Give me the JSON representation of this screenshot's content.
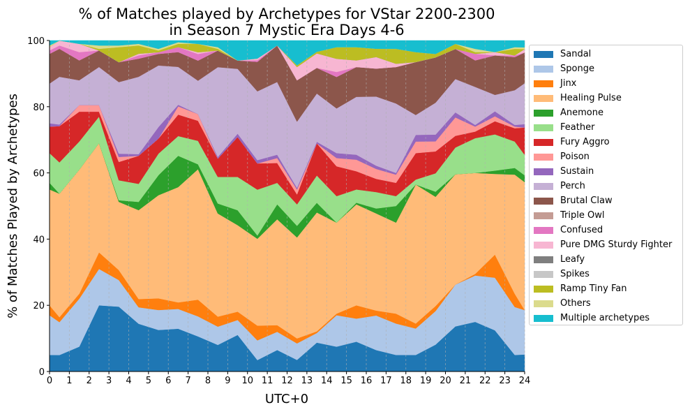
{
  "chart_data": {
    "type": "area",
    "stacked": true,
    "normalized_to": 100,
    "title": "% of Matches played by Archetypes for VStar 2200-2300\nin Season 7 Mystic Era Days 4-6",
    "xlabel": "UTC+0",
    "ylabel": "% of Matches Played by Archetypes",
    "xlim": [
      0,
      24
    ],
    "ylim": [
      0,
      100
    ],
    "x_ticks": [
      0,
      1,
      2,
      3,
      4,
      5,
      6,
      7,
      8,
      9,
      10,
      11,
      12,
      13,
      14,
      15,
      16,
      17,
      18,
      19,
      20,
      21,
      22,
      23,
      24
    ],
    "y_ticks": [
      0,
      20,
      40,
      60,
      80,
      100
    ],
    "grid": "vertical dashed",
    "legend_position": "outside-right",
    "x": [
      0,
      0.5,
      1.5,
      2.5,
      3.5,
      4.5,
      5.5,
      6.5,
      7.5,
      8.5,
      9.5,
      10.5,
      11.5,
      12.5,
      13.5,
      14.5,
      15.5,
      16.5,
      17.5,
      18.5,
      19.5,
      20.5,
      21.5,
      22.5,
      23.5,
      24
    ],
    "series": [
      {
        "name": "Sandal",
        "color": "#1f77b4",
        "values": [
          5,
          5,
          7.5,
          20,
          19.5,
          14.5,
          12.5,
          13,
          10.5,
          8,
          11,
          3.5,
          6.5,
          3.5,
          9,
          7.5,
          9,
          6.5,
          5,
          5,
          8,
          13.5,
          15,
          12.5,
          5,
          5
        ]
      },
      {
        "name": "Sponge",
        "color": "#aec7e8",
        "values": [
          12,
          10,
          14.5,
          11,
          8,
          5,
          6,
          6,
          6,
          5.5,
          4.5,
          6,
          5.5,
          5,
          3,
          9.5,
          7,
          10.5,
          9.5,
          8,
          10,
          12.5,
          14,
          16,
          14.5,
          13
        ]
      },
      {
        "name": "Jinx",
        "color": "#ff7f0e",
        "values": [
          3,
          1.5,
          1.5,
          5,
          3,
          2.5,
          3.5,
          2,
          5,
          3,
          2.5,
          4.5,
          2,
          1.5,
          0.5,
          0.5,
          4,
          1.5,
          3,
          1.5,
          1.5,
          0,
          0.5,
          7,
          4,
          0
        ]
      },
      {
        "name": "Healing Pulse",
        "color": "#ffbb78",
        "values": [
          35,
          37.5,
          37.5,
          33,
          20.5,
          27,
          31,
          35,
          39,
          31,
          26,
          26.5,
          32,
          30.5,
          37,
          27.5,
          30.5,
          29.5,
          27.5,
          42,
          32.5,
          33,
          30.5,
          24.5,
          36,
          37.5
        ]
      },
      {
        "name": "Anemone",
        "color": "#2ca02c",
        "values": [
          2,
          0,
          0,
          0,
          0.5,
          2.5,
          6,
          9.5,
          1.5,
          3,
          4.5,
          1,
          4.5,
          3.5,
          3,
          0,
          0.5,
          1.5,
          5,
          0,
          1.5,
          0,
          0,
          1,
          2,
          2
        ]
      },
      {
        "name": "Feather",
        "color": "#98df8a",
        "values": [
          9,
          9.5,
          8.5,
          8,
          6,
          5.5,
          6.5,
          6,
          7,
          8,
          10,
          14,
          6.5,
          6.5,
          8.5,
          8,
          4,
          5,
          3,
          1.5,
          5.5,
          8,
          10.5,
          11,
          8,
          6
        ]
      },
      {
        "name": "Fury Aggro",
        "color": "#d62728",
        "values": [
          8,
          11,
          9,
          1.5,
          5.5,
          8.5,
          4.5,
          6.5,
          6,
          5.5,
          12,
          8,
          6,
          3,
          10,
          9,
          5.5,
          4,
          4,
          8,
          6.5,
          3.5,
          2,
          4,
          4,
          8
        ]
      },
      {
        "name": "Poison",
        "color": "#ff9896",
        "values": [
          0,
          0,
          2,
          2,
          1.5,
          0,
          0,
          2.5,
          2,
          0,
          0,
          0,
          1.5,
          1.5,
          0,
          2.5,
          3.5,
          3,
          2.5,
          3.5,
          3,
          5.5,
          1.5,
          1.5,
          0.5,
          0
        ]
      },
      {
        "name": "Sustain",
        "color": "#9467bd",
        "values": [
          1,
          0.5,
          0,
          0,
          1,
          0.5,
          3.5,
          0.5,
          0,
          0.5,
          1,
          1,
          1,
          0.5,
          0.5,
          1.5,
          1.5,
          1,
          0.5,
          2,
          2,
          1.5,
          0.5,
          1.5,
          0.5,
          1
        ]
      },
      {
        "name": "Perch",
        "color": "#c5b0d5",
        "values": [
          12,
          14.5,
          7.5,
          11.5,
          21.5,
          23.5,
          18.5,
          11.5,
          10,
          27,
          19.5,
          21,
          22,
          20,
          15,
          13.5,
          17.5,
          21,
          21,
          6,
          9.5,
          10,
          11.5,
          5,
          10.5,
          12
        ]
      },
      {
        "name": "Brutal Claw",
        "color": "#8c564b",
        "values": [
          9,
          8.5,
          6,
          5,
          6,
          5.5,
          3.5,
          4.5,
          6,
          5,
          2.5,
          9,
          11,
          12.5,
          8,
          9.5,
          9,
          8.5,
          11,
          16,
          13.5,
          9,
          8,
          12,
          10,
          9
        ]
      },
      {
        "name": "Triple Owl",
        "color": "#c49c94",
        "values": [
          0,
          0,
          0,
          0,
          0,
          0,
          0,
          0,
          0,
          0,
          0,
          0,
          0,
          0,
          0,
          0,
          0,
          0,
          0,
          0,
          0,
          0,
          0,
          0,
          0,
          0
        ]
      },
      {
        "name": "Confused",
        "color": "#e377c2",
        "values": [
          1,
          1,
          2.5,
          0,
          0,
          1,
          0.5,
          1.5,
          2,
          0,
          0,
          0.5,
          0,
          0,
          0,
          1.5,
          0,
          0,
          0,
          0,
          0,
          0,
          2,
          0,
          0.5,
          0
        ]
      },
      {
        "name": "Pure DMG Sturdy Fighter",
        "color": "#f7b6d2",
        "values": [
          1,
          1.5,
          2.5,
          0,
          0,
          0.5,
          0,
          0,
          0.5,
          0,
          0,
          0.5,
          0,
          4,
          4.5,
          4,
          2,
          3.5,
          1,
          0,
          0,
          0,
          0,
          1,
          0,
          1
        ]
      },
      {
        "name": "Leafy",
        "color": "#7f7f7f",
        "values": [
          0,
          0,
          0,
          0,
          0,
          0,
          0,
          0,
          0,
          0,
          0,
          0,
          0,
          0,
          0,
          0,
          0,
          0,
          0,
          0,
          0,
          0,
          0,
          0,
          0,
          0
        ]
      },
      {
        "name": "Spikes",
        "color": "#c7c7c7",
        "values": [
          0,
          0,
          0,
          0,
          0,
          0,
          0,
          0,
          0,
          0,
          0,
          0,
          0,
          0,
          0,
          0,
          0,
          0,
          0,
          0,
          0,
          0,
          0,
          0,
          0,
          0
        ]
      },
      {
        "name": "Ramp Tiny Fan",
        "color": "#bcbd22",
        "values": [
          0,
          0,
          0,
          0.5,
          4.5,
          2.5,
          0.5,
          1,
          2.5,
          0.5,
          0,
          0,
          0,
          0.5,
          0.5,
          3.5,
          4,
          2.5,
          4.5,
          3,
          1,
          1.5,
          0.5,
          0,
          2,
          0
        ]
      },
      {
        "name": "Others",
        "color": "#dbdb8d",
        "values": [
          0.5,
          0,
          0,
          1,
          0.5,
          0.5,
          0.5,
          0.5,
          0,
          0.5,
          0,
          0,
          0,
          0,
          0,
          0,
          0,
          0,
          0,
          0,
          0,
          0,
          1,
          0,
          0.5,
          0.5
        ]
      },
      {
        "name": "Multiple archetypes",
        "color": "#17becf",
        "values": [
          1.5,
          0,
          1,
          1.5,
          1.5,
          1,
          2.5,
          0.5,
          1,
          2,
          6,
          5.5,
          1.5,
          7.5,
          3.5,
          2,
          2,
          2.5,
          2.5,
          3.5,
          4,
          1,
          2.5,
          3.5,
          2,
          2
        ]
      }
    ]
  }
}
